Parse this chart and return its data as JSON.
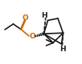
{
  "bg_color": "#ffffff",
  "line_color": "#1a1a1a",
  "line_width": 1.2,
  "H_color": "#1a1a1a",
  "O_color": "#cc6600",
  "font_size_H": 6.5,
  "font_size_O": 6.5,
  "xlim": [
    0,
    10
  ],
  "ylim": [
    0,
    8
  ],
  "m3": [
    0.5,
    4.3
  ],
  "m2": [
    1.55,
    5.0
  ],
  "cc": [
    2.55,
    4.3
  ],
  "o1": [
    3.05,
    5.45
  ],
  "o2": [
    3.5,
    3.5
  ],
  "bh1": [
    5.35,
    3.78
  ],
  "bh2": [
    7.75,
    3.88
  ],
  "c3": [
    5.85,
    5.45
  ],
  "c4": [
    7.1,
    5.7
  ],
  "c6": [
    6.5,
    2.65
  ],
  "c7": [
    7.55,
    2.5
  ],
  "n_hatch": 5,
  "off_double": 0.1
}
